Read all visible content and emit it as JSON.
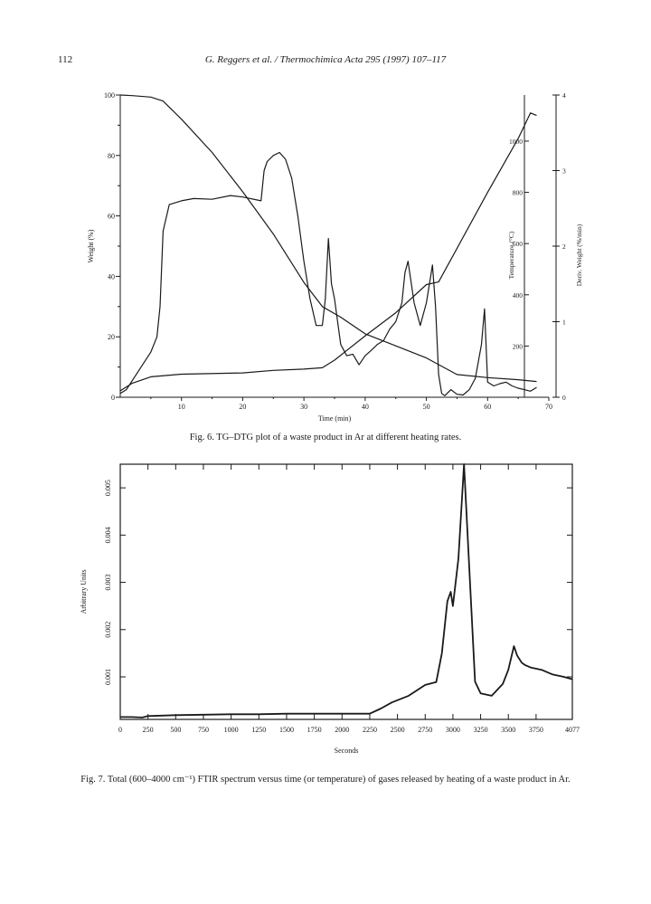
{
  "header": {
    "page_number": "112",
    "running_title": "G. Reggers et al. / Thermochimica Acta 295 (1997) 107–117"
  },
  "figures": [
    {
      "caption": "Fig. 6.  TG–DTG plot of a waste product in Ar at different heating rates."
    },
    {
      "caption": "Fig. 7.  Total (600–4000 cm⁻¹) FTIR spectrum versus time (or temperature) of gases released by heating of a waste product in Ar."
    }
  ],
  "chart_data": [
    {
      "type": "line",
      "xlabel": "Time (min)",
      "xlim": [
        0,
        70
      ],
      "x_ticks": [
        "10",
        "20",
        "30",
        "40",
        "50",
        "60",
        "70"
      ],
      "axes": {
        "left": {
          "label": "Weight (%)",
          "lim": [
            0,
            100
          ],
          "ticks": [
            "0",
            "20",
            "40",
            "60",
            "80",
            "100"
          ]
        },
        "temp": {
          "label": "Temperature (°C)",
          "lim": [
            0,
            1180
          ],
          "ticks": [
            "200",
            "400",
            "600",
            "800",
            "1000"
          ]
        },
        "deriv": {
          "label": "Deriv. Weight (%/min)",
          "lim": [
            0,
            4
          ],
          "ticks": [
            "0",
            "1",
            "2",
            "3",
            "4"
          ]
        }
      },
      "series": [
        {
          "axis": "left",
          "x": [
            0,
            2,
            5,
            7,
            10,
            15,
            20,
            25,
            30,
            33,
            36,
            40,
            45,
            50,
            55,
            60,
            65,
            68
          ],
          "y": [
            100,
            99.8,
            99.3,
            98,
            92,
            81,
            68,
            54,
            38,
            30,
            26.5,
            21,
            17,
            13,
            7.5,
            6.5,
            5.8,
            5.2
          ]
        },
        {
          "axis": "temp",
          "x": [
            0,
            2,
            5,
            10,
            20,
            25,
            30,
            33,
            35,
            40,
            45,
            50,
            52,
            60,
            65,
            67,
            68
          ],
          "y": [
            25,
            55,
            80,
            90,
            95,
            105,
            110,
            115,
            145,
            240,
            330,
            440,
            450,
            800,
            1010,
            1110,
            1100
          ]
        },
        {
          "axis": "deriv",
          "x": [
            0,
            1,
            3,
            5,
            6,
            6.5,
            7,
            8,
            10,
            12,
            15,
            18,
            20,
            23,
            23.5,
            24,
            25,
            26,
            27,
            28,
            29,
            30,
            31,
            32,
            33,
            33.5,
            34,
            34.5,
            35,
            36,
            37,
            38,
            39,
            40,
            41,
            42,
            43,
            44,
            45,
            46,
            46.5,
            47,
            48,
            49,
            50,
            51,
            51.5,
            52,
            52.5,
            53,
            54,
            55,
            56,
            57,
            58,
            59,
            59.5,
            60,
            61,
            62,
            63,
            64,
            65,
            66,
            67,
            68
          ],
          "y": [
            0.05,
            0.1,
            0.35,
            0.6,
            0.8,
            1.2,
            2.2,
            2.55,
            2.6,
            2.63,
            2.62,
            2.67,
            2.65,
            2.6,
            3.0,
            3.12,
            3.2,
            3.24,
            3.15,
            2.9,
            2.4,
            1.8,
            1.3,
            0.95,
            0.95,
            1.3,
            2.1,
            1.5,
            1.3,
            0.7,
            0.55,
            0.57,
            0.43,
            0.55,
            0.62,
            0.7,
            0.75,
            0.9,
            1.0,
            1.25,
            1.65,
            1.8,
            1.25,
            0.95,
            1.25,
            1.75,
            1.2,
            0.3,
            0.05,
            0.02,
            0.1,
            0.04,
            0.03,
            0.1,
            0.25,
            0.7,
            1.17,
            0.2,
            0.15,
            0.18,
            0.2,
            0.15,
            0.12,
            0.1,
            0.08,
            0.13
          ]
        }
      ]
    },
    {
      "type": "line",
      "xlabel": "Seconds",
      "ylabel": "Arbitrary Units",
      "xlim": [
        0,
        4077
      ],
      "ylim": [
        0.0001,
        0.0055
      ],
      "x_ticks": [
        "0",
        "250",
        "500",
        "750",
        "1000",
        "1250",
        "1500",
        "1750",
        "2000",
        "2250",
        "2500",
        "2750",
        "3000",
        "3250",
        "3500",
        "3750",
        "4077"
      ],
      "y_ticks": [
        "0.001",
        "0.002",
        "0.003",
        "0.004",
        "0.005"
      ],
      "series": [
        {
          "x": [
            0,
            100,
            200,
            250,
            500,
            750,
            1000,
            1250,
            1500,
            1750,
            2000,
            2250,
            2350,
            2450,
            2600,
            2750,
            2850,
            2900,
            2950,
            2980,
            3000,
            3050,
            3100,
            3150,
            3200,
            3250,
            3350,
            3450,
            3500,
            3550,
            3580,
            3620,
            3650,
            3700,
            3800,
            3900,
            4000,
            4077
          ],
          "y": [
            0.00015,
            0.00015,
            0.00014,
            0.00017,
            0.00019,
            0.0002,
            0.00021,
            0.00021,
            0.00022,
            0.00022,
            0.00022,
            0.00022,
            0.00033,
            0.00046,
            0.0006,
            0.00083,
            0.00089,
            0.0015,
            0.0026,
            0.0028,
            0.0025,
            0.0035,
            0.0055,
            0.0032,
            0.0009,
            0.00065,
            0.0006,
            0.00085,
            0.00115,
            0.00165,
            0.00145,
            0.0013,
            0.00125,
            0.0012,
            0.00115,
            0.00105,
            0.001,
            0.00095
          ]
        }
      ]
    }
  ]
}
